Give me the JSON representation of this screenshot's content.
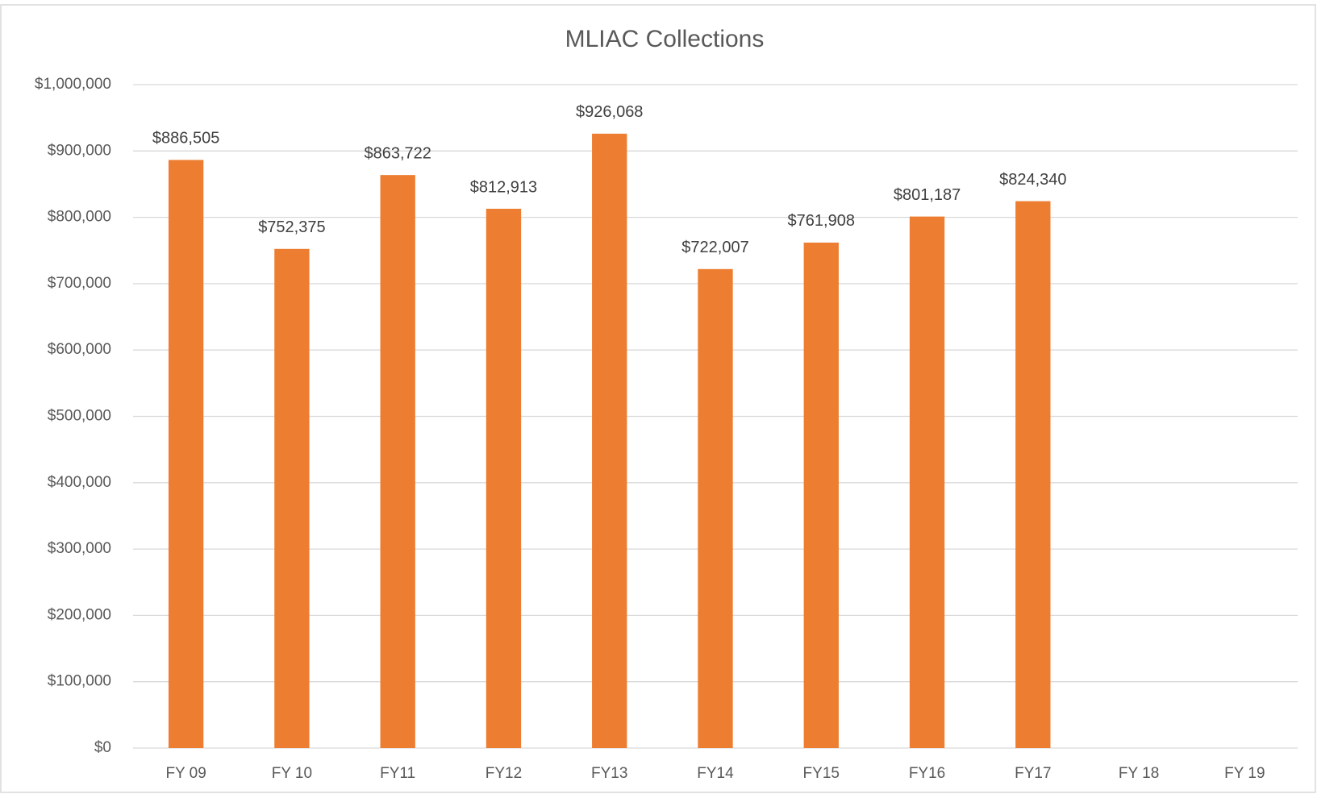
{
  "chart_data": {
    "type": "bar",
    "title": "MLIAC Collections",
    "categories": [
      "FY 09",
      "FY 10",
      "FY11",
      "FY12",
      "FY13",
      "FY14",
      "FY15",
      "FY16",
      "FY17",
      "FY 18",
      "FY 19"
    ],
    "values": [
      886505,
      752375,
      863722,
      812913,
      926068,
      722007,
      761908,
      801187,
      824340,
      null,
      null
    ],
    "value_labels": [
      "$886,505",
      "$752,375",
      "$863,722",
      "$812,913",
      "$926,068",
      "$722,007",
      "$761,908",
      "$801,187",
      "$824,340",
      null,
      null
    ],
    "color": "#ed7d31",
    "ylim": [
      0,
      1000000
    ],
    "yticks": [
      {
        "value": 0,
        "label": "$0"
      },
      {
        "value": 100000,
        "label": "$100,000"
      },
      {
        "value": 200000,
        "label": "$200,000"
      },
      {
        "value": 300000,
        "label": "$300,000"
      },
      {
        "value": 400000,
        "label": "$400,000"
      },
      {
        "value": 500000,
        "label": "$500,000"
      },
      {
        "value": 600000,
        "label": "$600,000"
      },
      {
        "value": 700000,
        "label": "$700,000"
      },
      {
        "value": 800000,
        "label": "$800,000"
      },
      {
        "value": 900000,
        "label": "$900,000"
      },
      {
        "value": 1000000,
        "label": "$1,000,000"
      }
    ],
    "grid": true
  }
}
